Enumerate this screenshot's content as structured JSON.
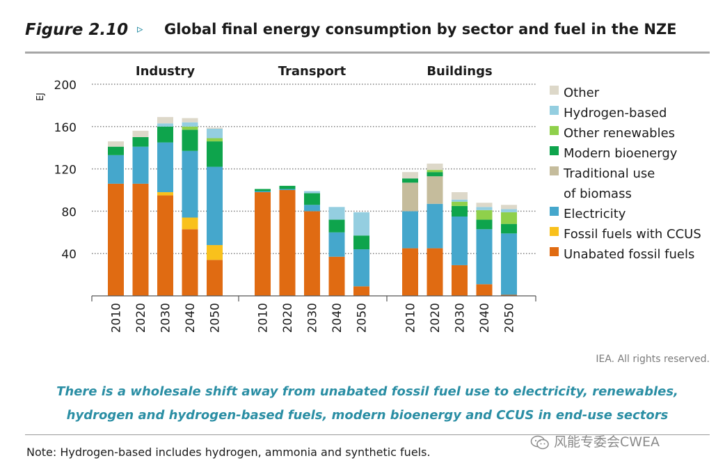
{
  "figure": {
    "label": "Figure 2.10",
    "arrow": "▹",
    "title": "Global final energy consumption by sector and fuel in the NZE"
  },
  "credit": "IEA. All rights reserved.",
  "caption": {
    "line1": "There is a wholesale shift away from unabated fossil fuel use to electricity, renewables,",
    "line2": "hydrogen and hydrogen-based fuels, modern bioenergy and CCUS in end-use sectors"
  },
  "note": "Note: Hydrogen-based includes hydrogen, ammonia and synthetic fuels.",
  "watermark": "风能专委会CWEA",
  "chart_data": {
    "type": "bar",
    "stacked": true,
    "ylabel": "EJ",
    "ylim": [
      0,
      200
    ],
    "yticks": [
      40,
      80,
      120,
      160,
      200
    ],
    "grid": "dotted horizontal",
    "legend_position": "right",
    "groups": [
      {
        "name": "Industry",
        "categories": [
          "2010",
          "2020",
          "2030",
          "2040",
          "2050"
        ]
      },
      {
        "name": "Transport",
        "categories": [
          "2010",
          "2020",
          "2030",
          "2040",
          "2050"
        ]
      },
      {
        "name": "Buildings",
        "categories": [
          "2010",
          "2020",
          "2030",
          "2040",
          "2050"
        ]
      }
    ],
    "series": [
      {
        "name": "Unabated fossil fuels",
        "color": "#e06b12",
        "values": [
          [
            106,
            106,
            95,
            63,
            34
          ],
          [
            98,
            100,
            80,
            37,
            9
          ],
          [
            45,
            45,
            29,
            11,
            1
          ]
        ]
      },
      {
        "name": "Fossil fuels with CCUS",
        "color": "#f9c11c",
        "values": [
          [
            0,
            0,
            3,
            11,
            14
          ],
          [
            0,
            0,
            0,
            0,
            0
          ],
          [
            0,
            0,
            0,
            0,
            0
          ]
        ]
      },
      {
        "name": "Electricity",
        "color": "#45a7cc",
        "values": [
          [
            27,
            35,
            47,
            63,
            74
          ],
          [
            1,
            1,
            6,
            23,
            35
          ],
          [
            35,
            42,
            46,
            52,
            58
          ]
        ]
      },
      {
        "name": "Traditional use of biomass",
        "color": "#c5bc9c",
        "values": [
          [
            0,
            0,
            0,
            0,
            0
          ],
          [
            0,
            0,
            0,
            0,
            0
          ],
          [
            27,
            26,
            0,
            0,
            0
          ]
        ]
      },
      {
        "name": "Modern bioenergy",
        "color": "#0ea44c",
        "values": [
          [
            8,
            9,
            15,
            20,
            24
          ],
          [
            2,
            3,
            11,
            12,
            13
          ],
          [
            4,
            4,
            10,
            9,
            9
          ]
        ]
      },
      {
        "name": "Other renewables",
        "color": "#8fd04b",
        "values": [
          [
            0,
            0,
            0,
            3,
            3
          ],
          [
            0,
            0,
            0,
            0,
            0
          ],
          [
            0,
            2,
            4,
            9,
            11
          ]
        ]
      },
      {
        "name": "Hydrogen-based",
        "color": "#94cee0",
        "values": [
          [
            0,
            0,
            3,
            4,
            9
          ],
          [
            0,
            0,
            2,
            12,
            22
          ],
          [
            0,
            0,
            2,
            3,
            3
          ]
        ]
      },
      {
        "name": "Other",
        "color": "#ddd8c9",
        "values": [
          [
            5,
            6,
            6,
            4,
            1
          ],
          [
            0,
            0,
            0,
            0,
            0
          ],
          [
            6,
            6,
            7,
            4,
            4
          ]
        ]
      }
    ],
    "legend": [
      {
        "lines": [
          "Other"
        ],
        "color": "#ddd8c9"
      },
      {
        "lines": [
          "Hydrogen-based"
        ],
        "color": "#94cee0"
      },
      {
        "lines": [
          "Other renewables"
        ],
        "color": "#8fd04b"
      },
      {
        "lines": [
          "Modern bioenergy"
        ],
        "color": "#0ea44c"
      },
      {
        "lines": [
          "Traditional use",
          "of biomass"
        ],
        "color": "#c5bc9c"
      },
      {
        "lines": [
          "Electricity"
        ],
        "color": "#45a7cc"
      },
      {
        "lines": [
          "Fossil fuels with CCUS"
        ],
        "color": "#f9c11c"
      },
      {
        "lines": [
          "Unabated fossil fuels"
        ],
        "color": "#e06b12"
      }
    ]
  }
}
